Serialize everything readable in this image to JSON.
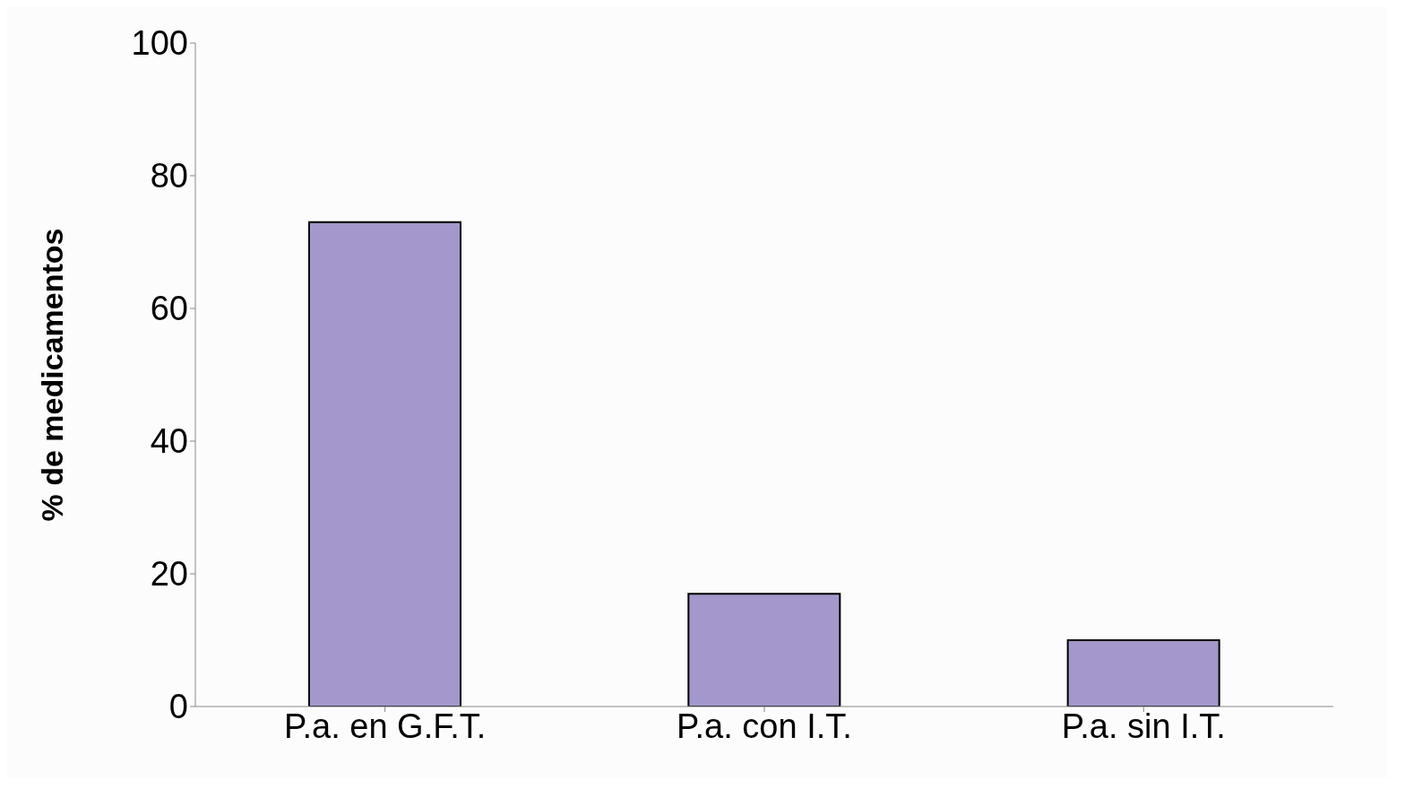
{
  "chart_data": {
    "type": "bar",
    "ylabel": "% de medicamentos",
    "categories": [
      "P.a. en G.F.T.",
      "P.a. con I.T.",
      "P.a. sin I.T."
    ],
    "values": [
      73,
      17,
      10
    ],
    "color": "#a397cb",
    "ylim": [
      0,
      100
    ],
    "yticks": [
      0,
      20,
      40,
      60,
      80,
      100
    ],
    "grid": false
  }
}
